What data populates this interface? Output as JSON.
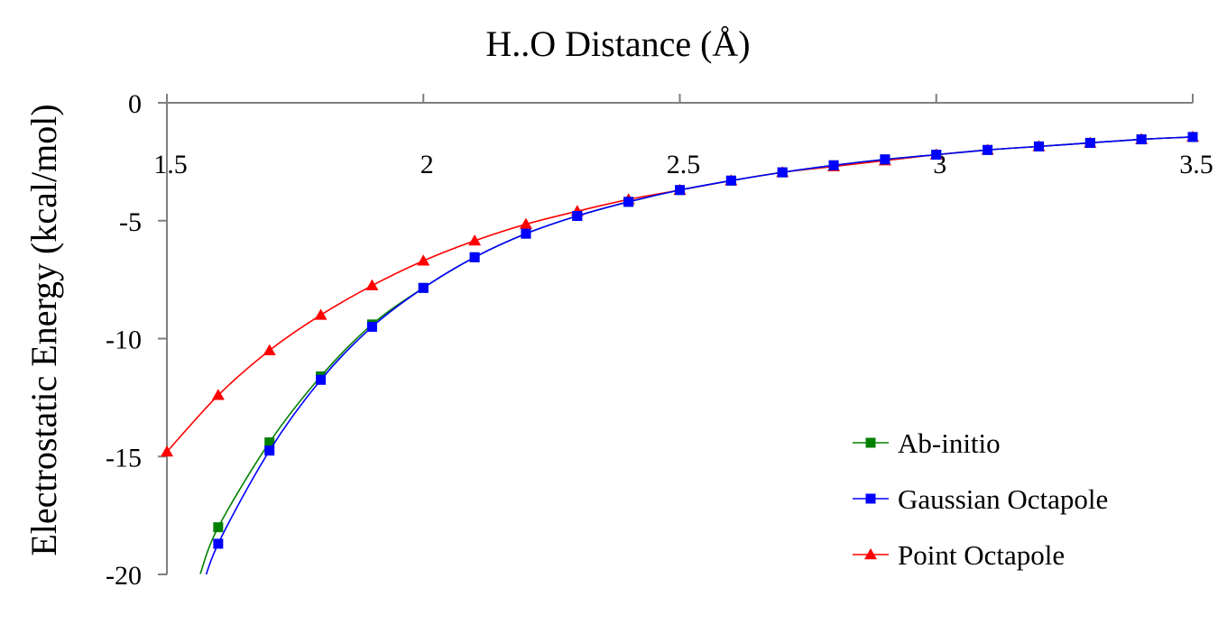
{
  "chart_data": {
    "type": "line",
    "title": "",
    "xlabel": "H..O Distance  (Å)",
    "ylabel": "Electrostatic Energy (kcal/mol)",
    "xlim": [
      1.5,
      3.5
    ],
    "ylim": [
      -20,
      0
    ],
    "x_axis_position": "top",
    "x_ticks": [
      1.5,
      2,
      2.5,
      3,
      3.5
    ],
    "x_tick_labels": [
      "1.5",
      "2",
      "2.5",
      "3",
      "3.5"
    ],
    "y_ticks": [
      0,
      -5,
      -10,
      -15,
      -20
    ],
    "y_tick_labels": [
      "0",
      "-5",
      "-10",
      "-15",
      "-20"
    ],
    "grid": false,
    "legend_position": "bottom-right",
    "series": [
      {
        "name": "Ab-initio",
        "color": "#008000",
        "marker": "square",
        "x": [
          1.6,
          1.7,
          1.8,
          1.9,
          2.0,
          2.1,
          2.2,
          2.3,
          2.4,
          2.5,
          2.6,
          2.7,
          2.8,
          2.9,
          3.0,
          3.1,
          3.2,
          3.3,
          3.4,
          3.5
        ],
        "y": [
          -18.0,
          -14.4,
          -11.6,
          -9.4,
          -7.85,
          -6.55,
          -5.55,
          -4.8,
          -4.2,
          -3.7,
          -3.3,
          -2.95,
          -2.65,
          -2.4,
          -2.2,
          -2.0,
          -1.85,
          -1.7,
          -1.55,
          -1.45
        ]
      },
      {
        "name": "Gaussian Octapole",
        "color": "#0000ff",
        "marker": "square",
        "x": [
          1.6,
          1.7,
          1.8,
          1.9,
          2.0,
          2.1,
          2.2,
          2.3,
          2.4,
          2.5,
          2.6,
          2.7,
          2.8,
          2.9,
          3.0,
          3.1,
          3.2,
          3.3,
          3.4,
          3.5
        ],
        "y": [
          -18.7,
          -14.75,
          -11.75,
          -9.5,
          -7.85,
          -6.55,
          -5.55,
          -4.8,
          -4.2,
          -3.7,
          -3.3,
          -2.95,
          -2.65,
          -2.4,
          -2.2,
          -2.0,
          -1.85,
          -1.7,
          -1.55,
          -1.45
        ]
      },
      {
        "name": "Point Octapole",
        "color": "#ff0000",
        "marker": "triangle",
        "x": [
          1.5,
          1.6,
          1.7,
          1.8,
          1.9,
          2.0,
          2.1,
          2.2,
          2.3,
          2.4,
          2.5,
          2.6,
          2.7,
          2.8,
          2.9,
          3.0,
          3.1,
          3.2,
          3.3,
          3.4,
          3.5
        ],
        "y": [
          -14.8,
          -12.4,
          -10.5,
          -9.0,
          -7.75,
          -6.7,
          -5.85,
          -5.15,
          -4.6,
          -4.1,
          -3.7,
          -3.3,
          -2.95,
          -2.7,
          -2.45,
          -2.2,
          -2.0,
          -1.85,
          -1.7,
          -1.55,
          -1.45
        ]
      }
    ]
  }
}
